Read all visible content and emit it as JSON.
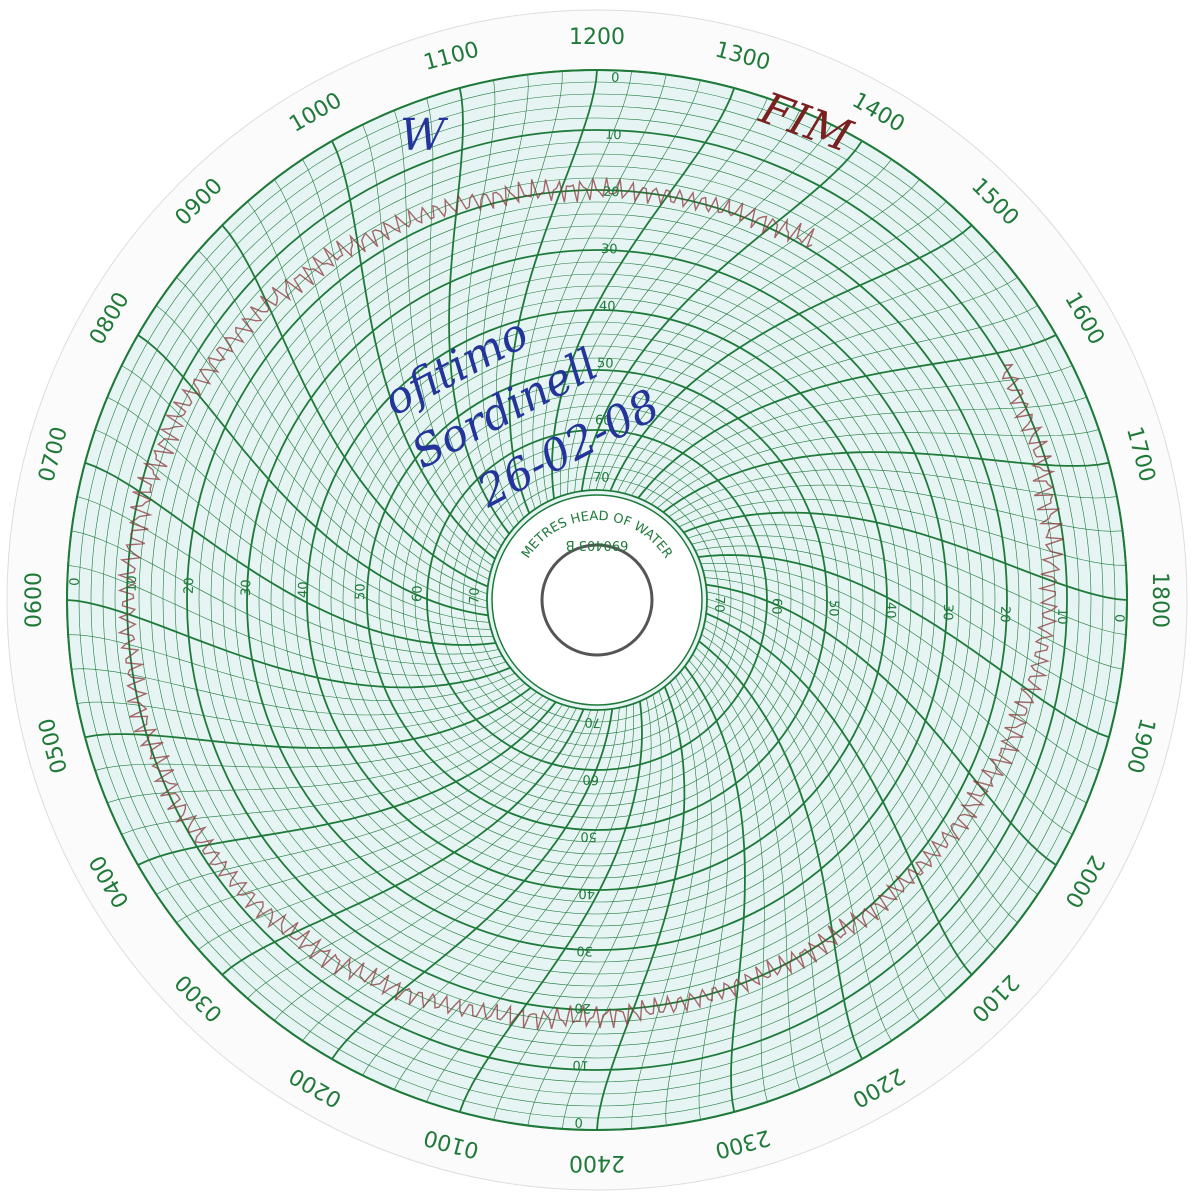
{
  "hours": [
    "1200",
    "1300",
    "1400",
    "1500",
    "1600",
    "1700",
    "1800",
    "1900",
    "2000",
    "2100",
    "2200",
    "2300",
    "2400",
    "0100",
    "0200",
    "0300",
    "0400",
    "0500",
    "0600",
    "0700",
    "0800",
    "0900",
    "1000",
    "1100"
  ],
  "scale": [
    "0",
    "10",
    "20",
    "30",
    "40",
    "50",
    "60",
    "70"
  ],
  "hub": {
    "caption": "METRES HEAD OF WATER",
    "serial": "690403 B"
  },
  "handwriting": {
    "line1": "ofitimo",
    "line2": "Sordinell",
    "line3": "26-02-08",
    "start": "W",
    "end": "FIM"
  }
}
